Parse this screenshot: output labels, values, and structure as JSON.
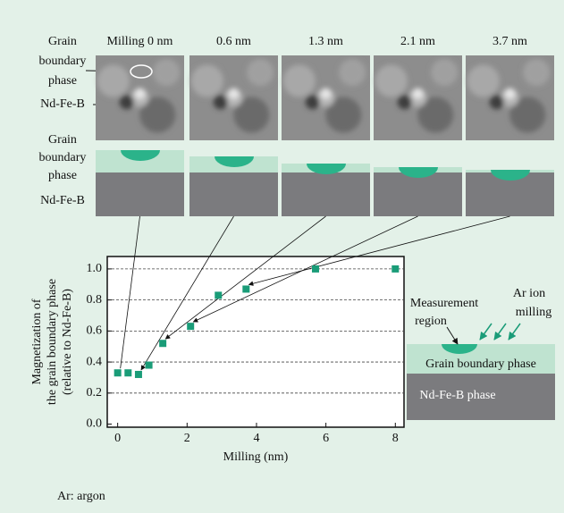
{
  "chart_data": {
    "type": "scatter",
    "x": [
      0,
      0.3,
      0.6,
      0.9,
      1.3,
      2.1,
      2.9,
      3.7,
      5.7,
      8
    ],
    "values": [
      0.33,
      0.33,
      0.32,
      0.38,
      0.52,
      0.63,
      0.83,
      0.87,
      1.0,
      1.0
    ],
    "color": "#1a9c78",
    "xlim": [
      -0.3,
      8.25
    ],
    "ylim": [
      -0.02,
      1.08
    ],
    "xticks": [
      0,
      2,
      4,
      6,
      8
    ],
    "yticks": [
      {
        "value": 0,
        "label": "0.0"
      },
      {
        "value": 0.2,
        "label": "0.2"
      },
      {
        "value": 0.4,
        "label": "0.4"
      },
      {
        "value": 0.6,
        "label": "0.6"
      },
      {
        "value": 0.8,
        "label": "0.8"
      },
      {
        "value": 1,
        "label": "1.0"
      }
    ],
    "grid": true,
    "x_label": "Milling (nm)",
    "y_label": [
      "Magnetization of",
      "the grain boundary phase",
      "(relative to Nd-Fe-B)"
    ]
  },
  "images": {
    "columns": [
      "Milling 0 nm",
      "0.6 nm",
      "1.3 nm",
      "2.1 nm",
      "3.7 nm"
    ],
    "labels": {
      "grain_boundary": [
        "Grain",
        "boundary",
        "phase"
      ],
      "ndfeb": "Nd-Fe-B"
    }
  },
  "cross_sections": {
    "labels": {
      "grain_boundary": [
        "Grain",
        "boundary",
        "phase"
      ],
      "ndfeb": "Nd-Fe-B"
    }
  },
  "inset": {
    "measurement_region": [
      "Measurement",
      "region"
    ],
    "ar_ion_milling": [
      "Ar ion",
      "milling"
    ],
    "grain_boundary_phase": "Grain boundary phase",
    "ndfeb_phase": "Nd-Fe-B phase"
  },
  "footnote": "Ar: argon"
}
